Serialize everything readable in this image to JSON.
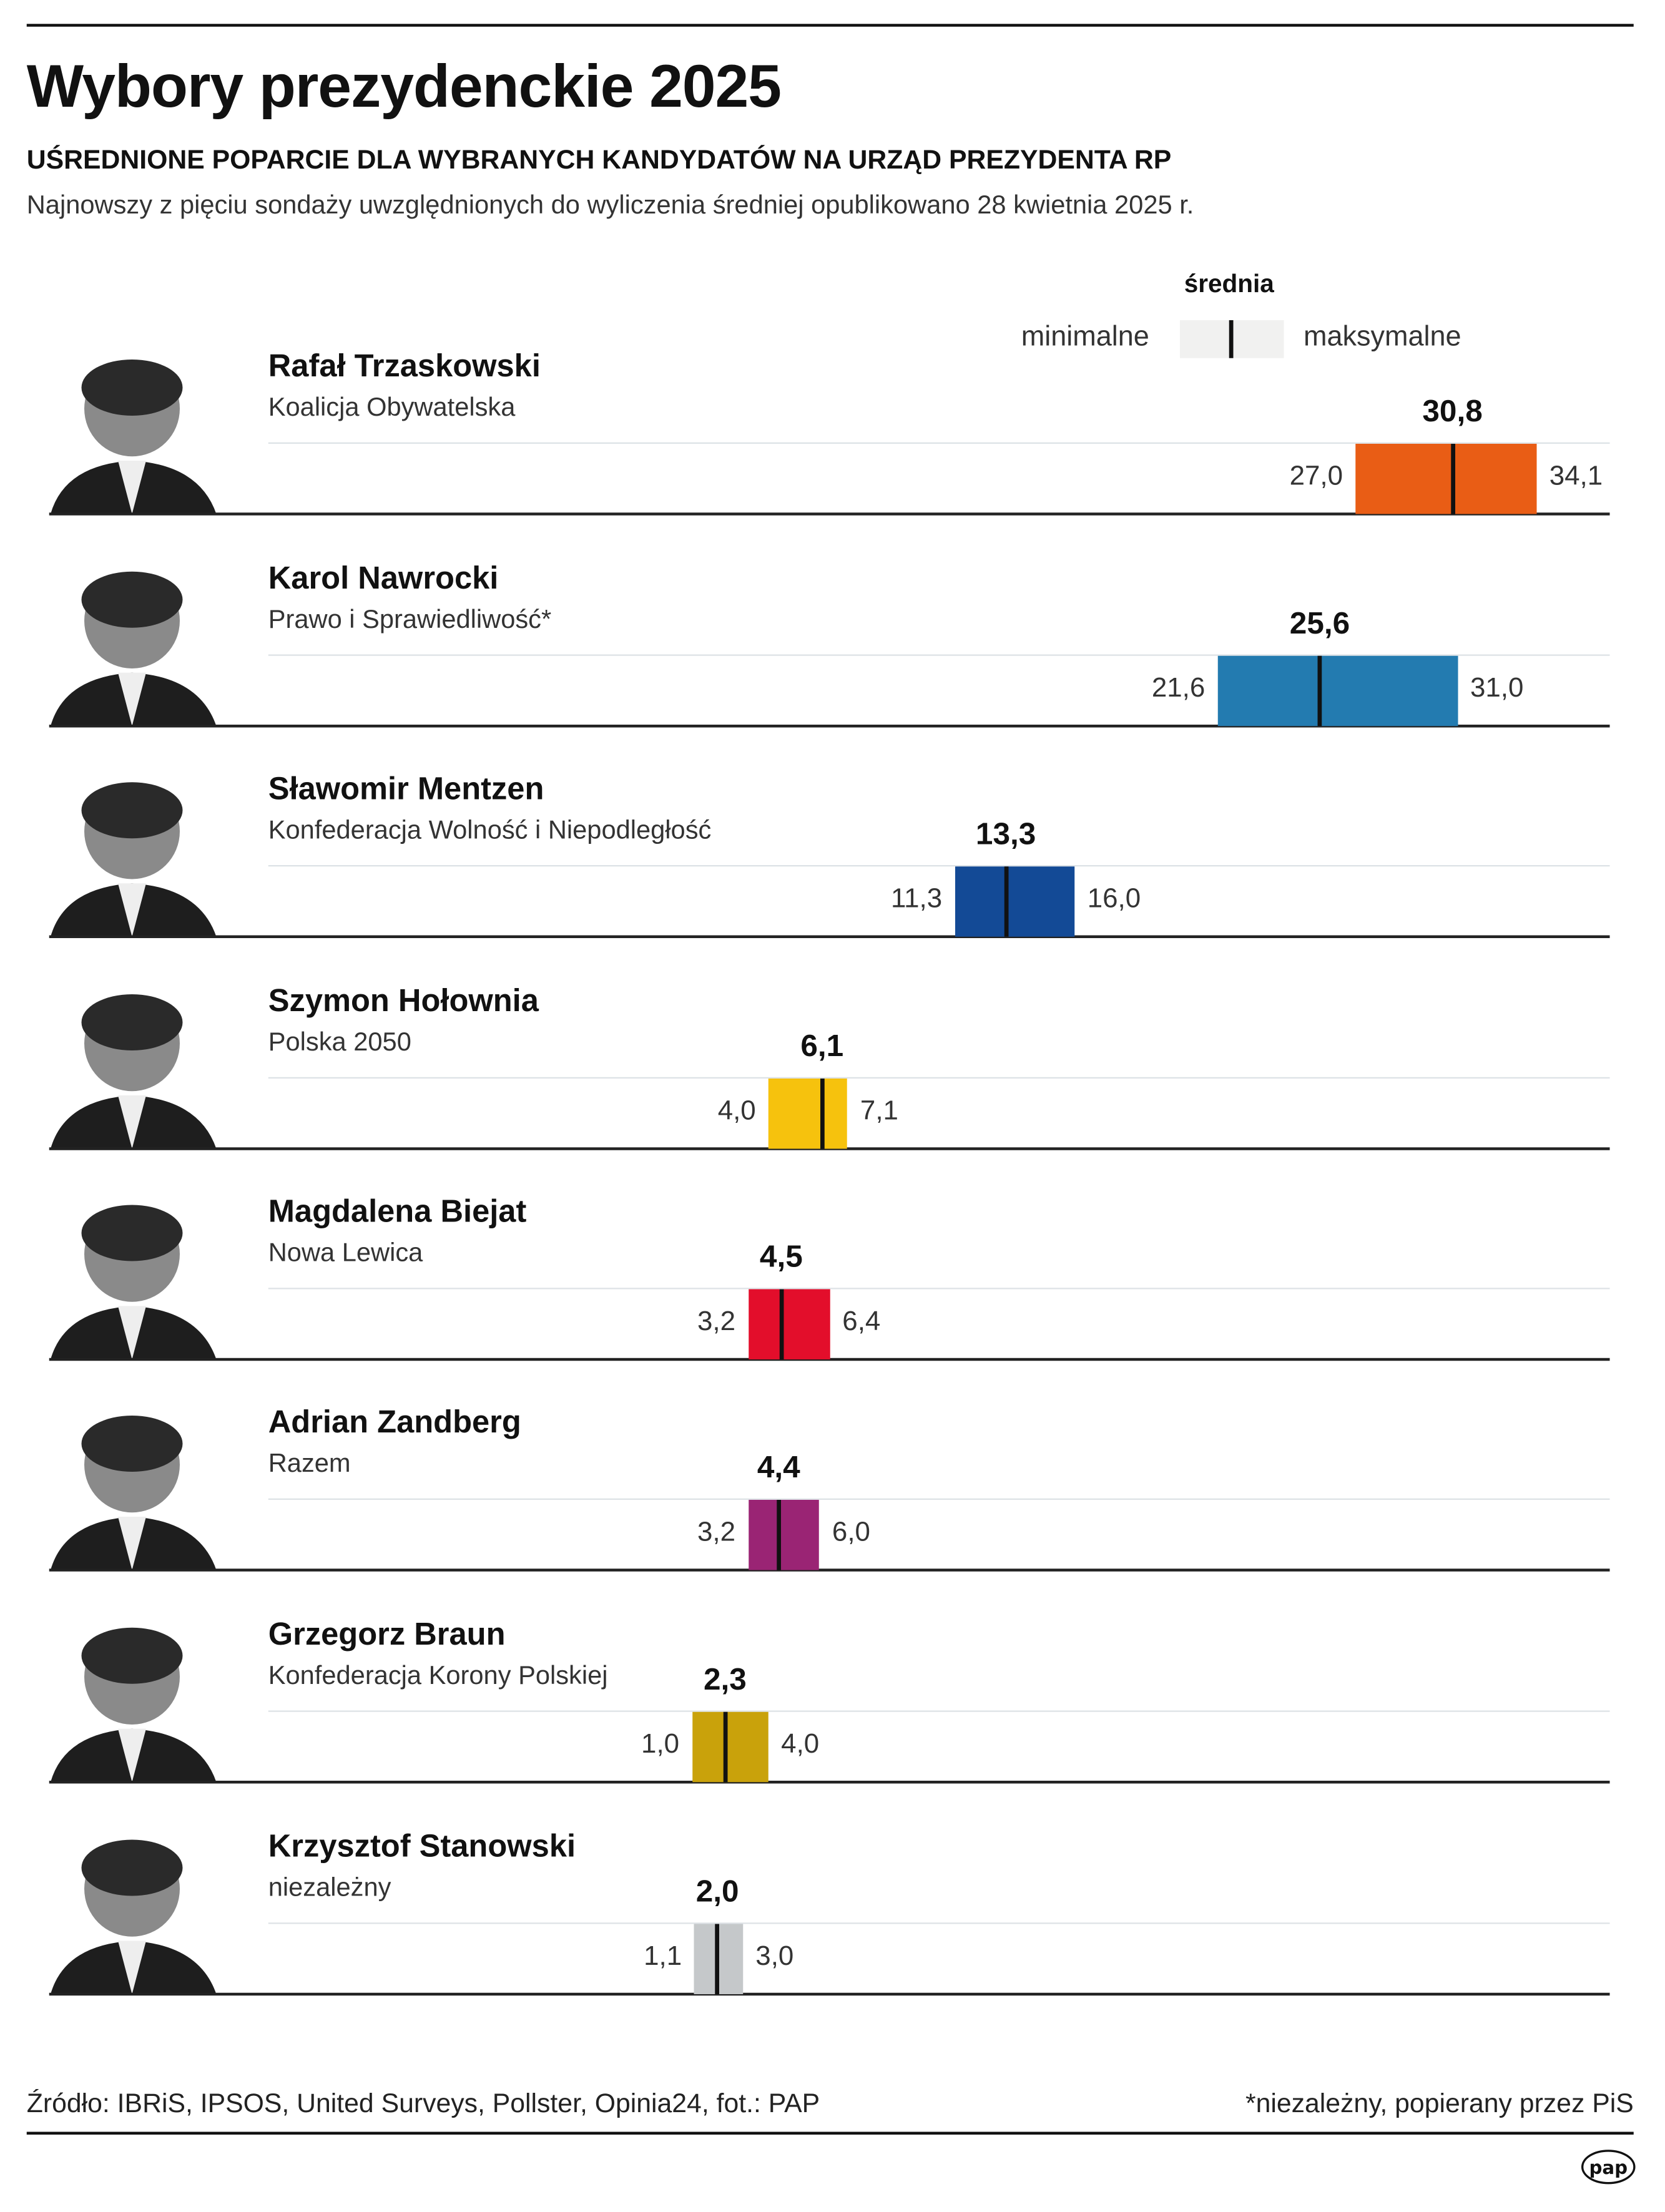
{
  "title": "Wybory prezydenckie 2025",
  "subtitle": "UŚREDNIONE POPARCIE DLA WYBRANYCH KANDYDATÓW NA URZĄD PREZYDENTA RP",
  "description": "Najnowszy z pięciu sondaży uwzględnionych do wyliczenia średniej opublikowano 28 kwietnia 2025 r.",
  "legend": {
    "mean": "średnia",
    "min": "minimalne",
    "max": "maksymalne"
  },
  "footer": {
    "source": "Źródło: IBRiS, IPSOS, United Surveys, Pollster, Opinia24, fot.: PAP",
    "note": "*niezależny, popierany przez PiS",
    "logo": "pap"
  },
  "chart_data": {
    "type": "range-bar",
    "title": "Uśrednione poparcie dla wybranych kandydatów na urząd Prezydenta RP",
    "unit": "%",
    "candidates": [
      {
        "name": "Rafał Trzaskowski",
        "party": "Koalicja Obywatelska",
        "min": "27,0",
        "mean": "30,8",
        "max": "34,1",
        "min_v": 27.0,
        "mean_v": 30.8,
        "max_v": 34.1,
        "color": "#e95d15"
      },
      {
        "name": "Karol Nawrocki",
        "party": "Prawo i Sprawiedliwość*",
        "min": "21,6",
        "mean": "25,6",
        "max": "31,0",
        "min_v": 21.6,
        "mean_v": 25.6,
        "max_v": 31.0,
        "color": "#237bb0"
      },
      {
        "name": "Sławomir Mentzen",
        "party": "Konfederacja Wolność i Niepodległość",
        "min": "11,3",
        "mean": "13,3",
        "max": "16,0",
        "min_v": 11.3,
        "mean_v": 13.3,
        "max_v": 16.0,
        "color": "#134a96"
      },
      {
        "name": "Szymon Hołownia",
        "party": "Polska 2050",
        "min": "4,0",
        "mean": "6,1",
        "max": "7,1",
        "min_v": 4.0,
        "mean_v": 6.1,
        "max_v": 7.1,
        "color": "#f6c20d"
      },
      {
        "name": "Magdalena Biejat",
        "party": "Nowa Lewica",
        "min": "3,2",
        "mean": "4,5",
        "max": "6,4",
        "min_v": 3.2,
        "mean_v": 4.5,
        "max_v": 6.4,
        "color": "#e30e2b"
      },
      {
        "name": "Adrian Zandberg",
        "party": "Razem",
        "min": "3,2",
        "mean": "4,4",
        "max": "6,0",
        "min_v": 3.2,
        "mean_v": 4.4,
        "max_v": 6.0,
        "color": "#9a2474"
      },
      {
        "name": "Grzegorz Braun",
        "party": "Konfederacja Korony Polskiej",
        "min": "1,0",
        "mean": "2,3",
        "max": "4,0",
        "min_v": 1.0,
        "mean_v": 2.3,
        "max_v": 4.0,
        "color": "#c9a20b"
      },
      {
        "name": "Krzysztof Stanowski",
        "party": "niezależny",
        "min": "1,1",
        "mean": "2,0",
        "max": "3,0",
        "min_v": 1.1,
        "mean_v": 2.0,
        "max_v": 3.0,
        "color": "#c5c8ca"
      }
    ]
  }
}
